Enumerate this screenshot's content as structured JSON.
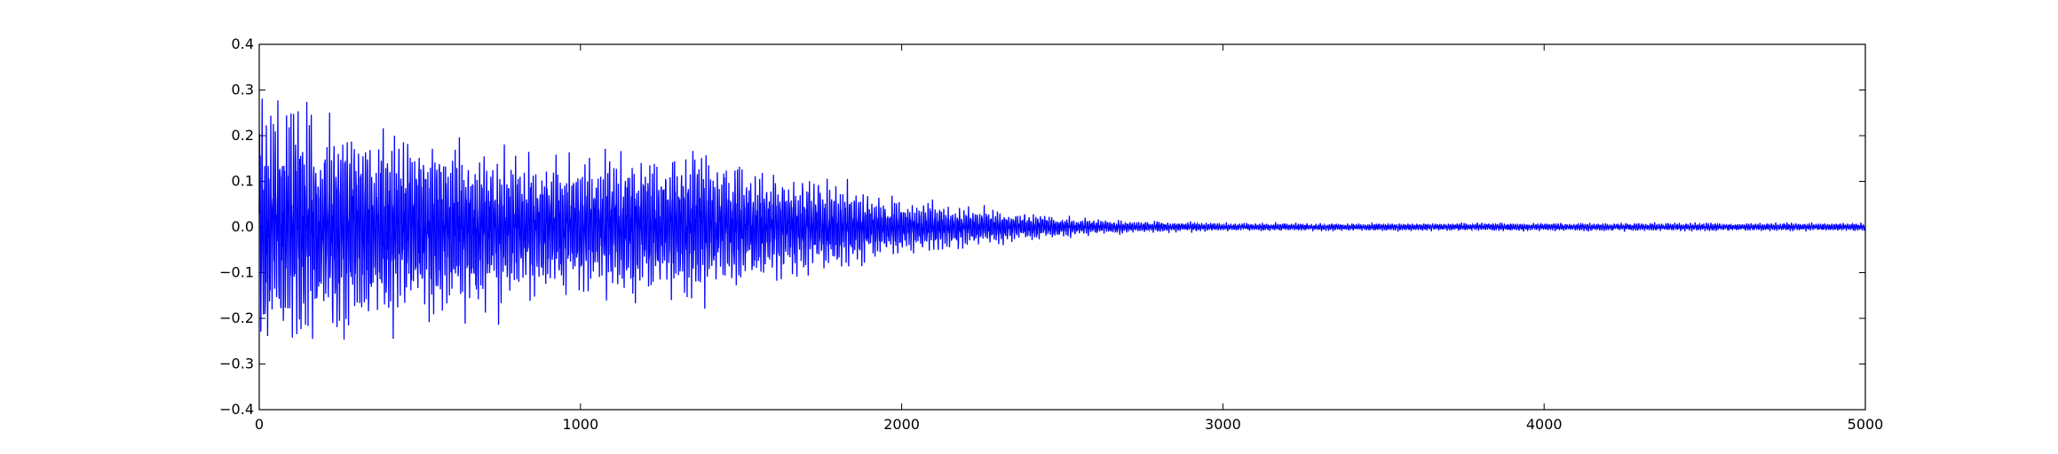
{
  "chart_data": {
    "type": "line",
    "title": "",
    "xlabel": "",
    "ylabel": "",
    "xlim": [
      0,
      5000
    ],
    "ylim": [
      -0.4,
      0.4
    ],
    "x_ticks": [
      0,
      1000,
      2000,
      3000,
      4000,
      5000
    ],
    "y_ticks": [
      0.4,
      0.3,
      0.2,
      0.1,
      0.0,
      -0.1,
      -0.2,
      -0.3,
      -0.4
    ],
    "x_tick_labels": [
      "0",
      "1000",
      "2000",
      "3000",
      "4000",
      "5000"
    ],
    "y_tick_labels": [
      "0.4",
      "0.3",
      "0.2",
      "0.1",
      "0.0",
      "−0.1",
      "−0.2",
      "−0.3",
      "−0.4"
    ],
    "grid": false,
    "series": [
      {
        "color": "#0000ff",
        "n_samples": 5000,
        "envelope": [
          [
            0,
            0.3
          ],
          [
            100,
            0.3
          ],
          [
            200,
            0.26
          ],
          [
            400,
            0.24
          ],
          [
            600,
            0.21
          ],
          [
            800,
            0.18
          ],
          [
            1000,
            0.17
          ],
          [
            1200,
            0.17
          ],
          [
            1350,
            0.18
          ],
          [
            1600,
            0.13
          ],
          [
            1800,
            0.11
          ],
          [
            2000,
            0.06
          ],
          [
            2100,
            0.06
          ],
          [
            2200,
            0.05
          ],
          [
            2350,
            0.04
          ],
          [
            2500,
            0.025
          ],
          [
            2700,
            0.015
          ],
          [
            2800,
            0.015
          ],
          [
            3000,
            0.01
          ],
          [
            5000,
            0.01
          ]
        ]
      }
    ]
  }
}
